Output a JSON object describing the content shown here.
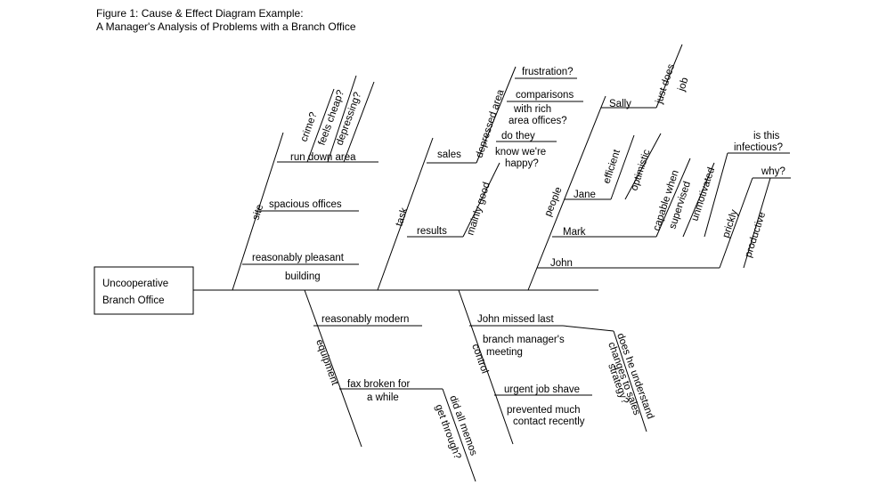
{
  "figure": {
    "title_line1": "Figure 1: Cause & Effect Diagram Example:",
    "title_line2": "A Manager's Analysis of Problems with a Branch Office"
  },
  "effect": {
    "line1": "Uncooperative",
    "line2": "Branch Office"
  },
  "site": {
    "label": "site",
    "run_down_area": "run down area",
    "crime": "crime?",
    "feels_cheap": "feels cheap?",
    "depressing": "depressing?",
    "spacious_offices": "spacious offices",
    "reasonably_pleasant": "reasonably pleasant",
    "building": "building"
  },
  "task": {
    "label": "task",
    "sales": "sales",
    "depressed_area": "depressed area",
    "frustration": "frustration?",
    "comparisons_1": "comparisons",
    "comparisons_2": "with rich",
    "comparisons_3": "area offices?",
    "do_they_1": "do they",
    "do_they_2": "know we're",
    "do_they_3": "happy?",
    "results": "results",
    "mainly_good": "mainly good"
  },
  "people": {
    "label": "people",
    "sally": "Sally",
    "just_does": "just does",
    "job": "job",
    "jane": "Jane",
    "efficient": "efficient",
    "optimistic": "optimistic",
    "mark": "Mark",
    "capable_when": "capable when",
    "supervised": "supervised",
    "unmotivated": "unmotivated",
    "is_this": "is this",
    "infectious": "infectious?",
    "john": "John",
    "why": "why?",
    "prickly": "prickly",
    "productive": "productive"
  },
  "equipment": {
    "label": "equipment",
    "reasonably_modern": "reasonably modern",
    "fax_1": "fax broken for",
    "fax_2": "a while",
    "memos_1": "did all memos",
    "memos_2": "get through?"
  },
  "control": {
    "label": "control",
    "john_missed": "John missed last",
    "branch_mgr_1": "branch manager's",
    "branch_mgr_2": "meeting",
    "does_he_1": "does he understand",
    "does_he_2": "changes to sales",
    "does_he_3": "strategy?",
    "urgent": "urgent job shave",
    "prevented_1": "prevented much",
    "prevented_2": "contact recently"
  }
}
